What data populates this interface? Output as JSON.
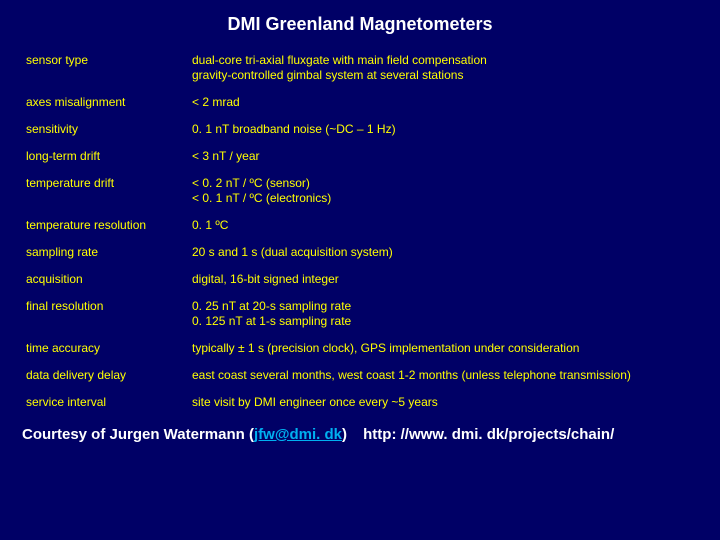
{
  "title": "DMI Greenland Magnetometers",
  "rows": [
    {
      "label": "sensor type",
      "value": "dual-core tri-axial fluxgate with main field compensation\ngravity-controlled gimbal system at several stations"
    },
    {
      "label": "axes misalignment",
      "value": "< 2 mrad"
    },
    {
      "label": "sensitivity",
      "value": "0. 1 nT broadband noise (~DC – 1 Hz)"
    },
    {
      "label": "long-term drift",
      "value": "< 3 nT / year"
    },
    {
      "label": "temperature drift",
      "value": "< 0. 2 nT / ºC (sensor)\n< 0. 1 nT / ºC (electronics)"
    },
    {
      "label": "temperature resolution",
      "value": "0. 1 ºC"
    },
    {
      "label": "sampling rate",
      "value": "20 s and 1 s (dual acquisition system)"
    },
    {
      "label": "acquisition",
      "value": "digital, 16-bit signed integer"
    },
    {
      "label": "final resolution",
      "value": "0. 25 nT at 20-s sampling rate\n0. 125 nT at 1-s sampling rate"
    },
    {
      "label": "time accuracy",
      "value": "typically ± 1 s (precision clock), GPS implementation under consideration"
    },
    {
      "label": "data delivery delay",
      "value": "east coast several months, west coast 1-2 months (unless telephone transmission)"
    },
    {
      "label": "service interval",
      "value": "site visit by DMI engineer once every ~5 years"
    }
  ],
  "footer": {
    "prefix": "Courtesy of Jurgen Watermann (",
    "email": "jfw@dmi. dk",
    "suffix": ")",
    "url": "http: //www. dmi. dk/projects/chain/"
  }
}
